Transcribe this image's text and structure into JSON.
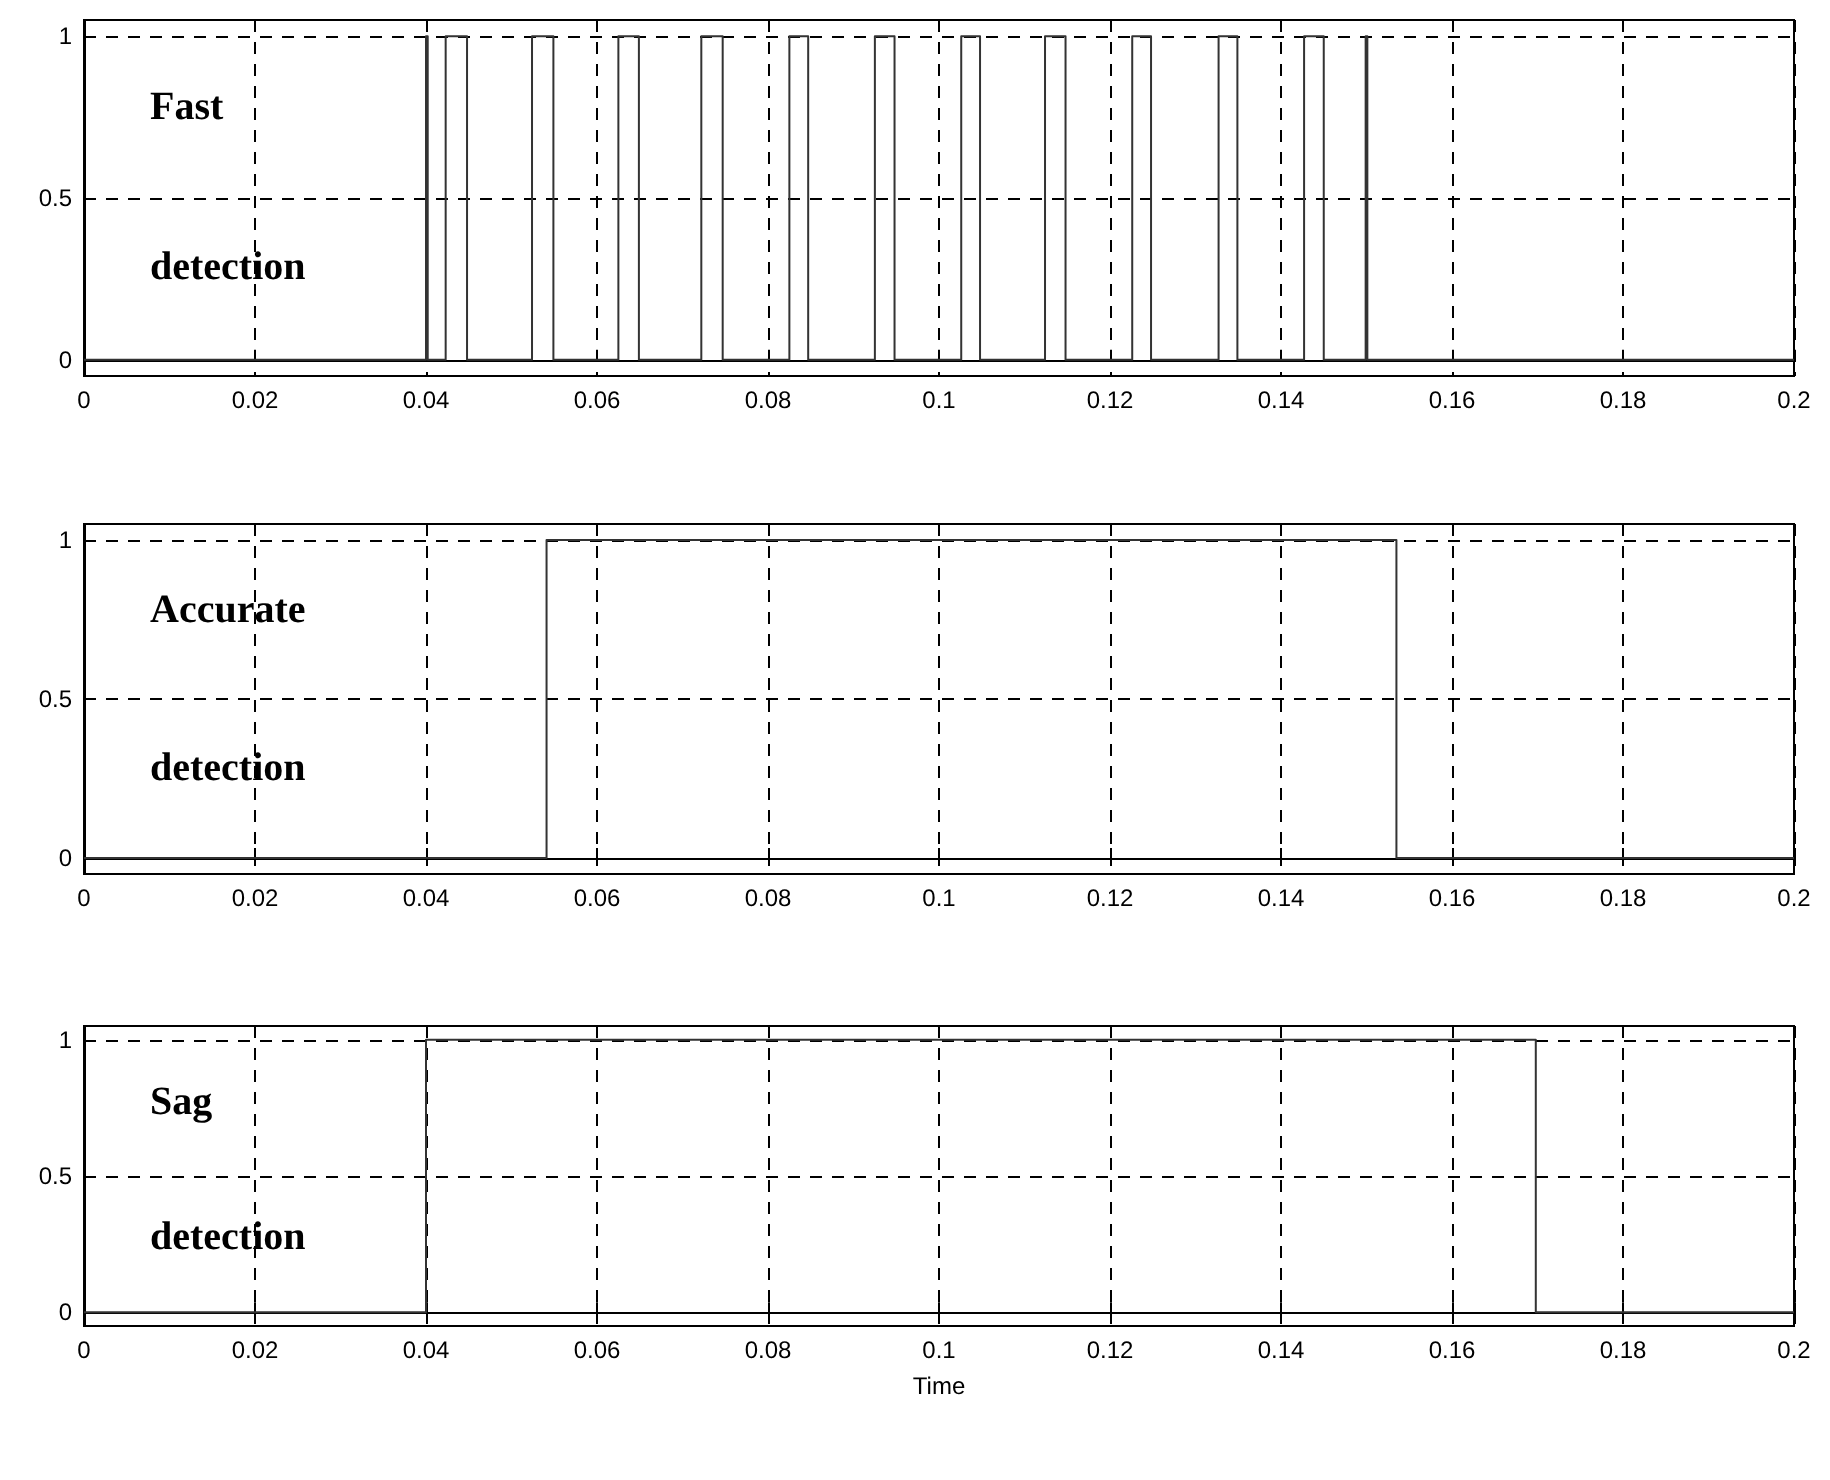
{
  "chart_data": [
    {
      "type": "step",
      "xlim": [
        0,
        0.2
      ],
      "xticks": [
        0,
        0.02,
        0.04,
        0.06,
        0.08,
        0.1,
        0.12,
        0.14,
        0.16,
        0.18,
        0.2
      ],
      "ylim": [
        -0.05,
        1.05
      ],
      "yticks": [
        0,
        0.5,
        1
      ],
      "grid": true,
      "annotations": [
        "Fast",
        "detection"
      ],
      "series": [
        {
          "color": "#333333",
          "x": [
            0,
            0.04,
            0.0402,
            0.0423,
            0.0448,
            0.0524,
            0.0549,
            0.0625,
            0.0649,
            0.0722,
            0.0747,
            0.0825,
            0.0847,
            0.0925,
            0.0948,
            0.1026,
            0.1048,
            0.1124,
            0.1148,
            0.1226,
            0.1248,
            0.1327,
            0.1349,
            0.1427,
            0.145,
            0.1499,
            0.1501,
            0.2
          ],
          "values": [
            0,
            1,
            0,
            1,
            0,
            1,
            0,
            1,
            0,
            1,
            0,
            1,
            0,
            1,
            0,
            1,
            0,
            1,
            0,
            1,
            0,
            1,
            0,
            1,
            0,
            1,
            0,
            0
          ]
        }
      ]
    },
    {
      "type": "step",
      "xlim": [
        0,
        0.2
      ],
      "xticks": [
        0,
        0.02,
        0.04,
        0.06,
        0.08,
        0.1,
        0.12,
        0.14,
        0.16,
        0.18,
        0.2
      ],
      "ylim": [
        -0.05,
        1.05
      ],
      "yticks": [
        0,
        0.5,
        1
      ],
      "grid": true,
      "annotations": [
        "Accurate",
        "detection"
      ],
      "series": [
        {
          "color": "#333333",
          "x": [
            0,
            0.0541,
            0.1535,
            0.2
          ],
          "values": [
            0,
            1,
            0,
            0
          ]
        }
      ]
    },
    {
      "type": "step",
      "xlim": [
        0,
        0.2
      ],
      "xticks": [
        0,
        0.02,
        0.04,
        0.06,
        0.08,
        0.1,
        0.12,
        0.14,
        0.16,
        0.18,
        0.2
      ],
      "ylim": [
        -0.05,
        1.05
      ],
      "yticks": [
        0,
        0.5,
        1
      ],
      "grid": true,
      "xlabel": "Time",
      "annotations": [
        "Sag",
        "detection"
      ],
      "series": [
        {
          "color": "#333333",
          "x": [
            0,
            0.04,
            0.1698,
            0.2
          ],
          "values": [
            0,
            1,
            0,
            0
          ]
        }
      ]
    }
  ]
}
